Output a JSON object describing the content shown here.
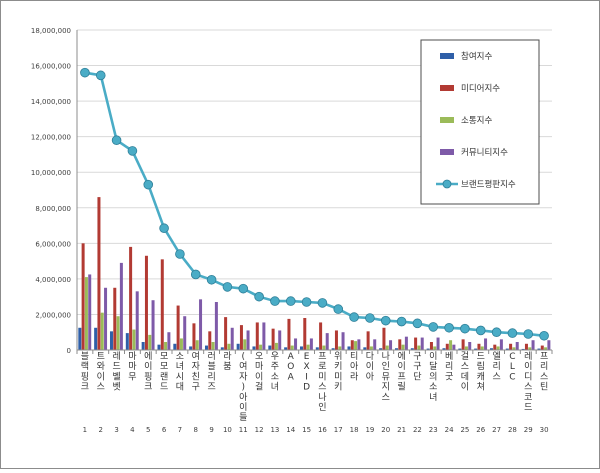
{
  "chart_data": {
    "type": "bar",
    "ylim": [
      0,
      18000000
    ],
    "y_ticks": [
      0,
      2000000,
      4000000,
      6000000,
      8000000,
      10000000,
      12000000,
      14000000,
      16000000,
      18000000
    ],
    "y_tick_labels": [
      "0",
      "2,000,000",
      "4,000,000",
      "6,000,000",
      "8,000,000",
      "10,000,000",
      "12,000,000",
      "14,000,000",
      "16,000,000",
      "18,000,000"
    ],
    "grid": true,
    "legend_position": "top-right",
    "categories": [
      "블랙핑크",
      "트와이스",
      "레드벨벳",
      "마마무",
      "에이핑크",
      "모모랜드",
      "소녀시대",
      "여자친구",
      "러블리즈",
      "라붐",
      "(여자)아이들",
      "오마이걸",
      "우주소녀",
      "AOA",
      "EXID",
      "프로미스나인",
      "위키미키",
      "티아라",
      "다이아",
      "나인뮤지스",
      "에이프릴",
      "구구단",
      "이달의소녀",
      "베리굿",
      "걸스데이",
      "드림캐쳐",
      "엘리스",
      "CLC",
      "레이디스코드",
      "프리스틴"
    ],
    "ranks": [
      "1",
      "2",
      "3",
      "4",
      "5",
      "6",
      "7",
      "8",
      "9",
      "10",
      "11",
      "12",
      "13",
      "14",
      "15",
      "16",
      "17",
      "18",
      "19",
      "20",
      "21",
      "22",
      "23",
      "24",
      "25",
      "26",
      "27",
      "28",
      "29",
      "30"
    ],
    "series": [
      {
        "name": "참여지수",
        "color": "#2f5fa8",
        "kind": "bar",
        "values": [
          1250000,
          1250000,
          1050000,
          950000,
          450000,
          300000,
          350000,
          200000,
          250000,
          150000,
          350000,
          200000,
          250000,
          150000,
          200000,
          150000,
          100000,
          200000,
          150000,
          100000,
          100000,
          100000,
          80000,
          100000,
          80000,
          80000,
          100000,
          80000,
          60000,
          80000
        ]
      },
      {
        "name": "미디어지수",
        "color": "#b23a33",
        "kind": "bar",
        "values": [
          6000000,
          8600000,
          3500000,
          5800000,
          5300000,
          5100000,
          2500000,
          1500000,
          1050000,
          1850000,
          1400000,
          1550000,
          1200000,
          1750000,
          1800000,
          1550000,
          1100000,
          550000,
          1050000,
          1250000,
          600000,
          700000,
          450000,
          350000,
          600000,
          350000,
          300000,
          350000,
          350000,
          250000
        ]
      },
      {
        "name": "소통지수",
        "color": "#9bbb59",
        "kind": "bar",
        "values": [
          4100000,
          2100000,
          1900000,
          1150000,
          850000,
          450000,
          650000,
          550000,
          450000,
          350000,
          600000,
          300000,
          400000,
          250000,
          300000,
          250000,
          200000,
          500000,
          200000,
          250000,
          300000,
          250000,
          200000,
          550000,
          200000,
          200000,
          200000,
          150000,
          150000,
          150000
        ]
      },
      {
        "name": "커뮤니티지수",
        "color": "#7e5aa8",
        "kind": "bar",
        "values": [
          4250000,
          3500000,
          4900000,
          3300000,
          2800000,
          1000000,
          1900000,
          2850000,
          2700000,
          1250000,
          1100000,
          1550000,
          1100000,
          650000,
          650000,
          950000,
          1000000,
          600000,
          600000,
          550000,
          750000,
          700000,
          700000,
          300000,
          450000,
          650000,
          600000,
          450000,
          550000,
          550000
        ]
      },
      {
        "name": "브랜드평판지수",
        "color": "#4aacc6",
        "kind": "line",
        "values": [
          15600000,
          15450000,
          11800000,
          11200000,
          9300000,
          6850000,
          5400000,
          4250000,
          3950000,
          3550000,
          3450000,
          3000000,
          2750000,
          2750000,
          2700000,
          2650000,
          2300000,
          1850000,
          1800000,
          1650000,
          1600000,
          1500000,
          1300000,
          1250000,
          1200000,
          1100000,
          1000000,
          950000,
          900000,
          800000
        ]
      }
    ]
  }
}
